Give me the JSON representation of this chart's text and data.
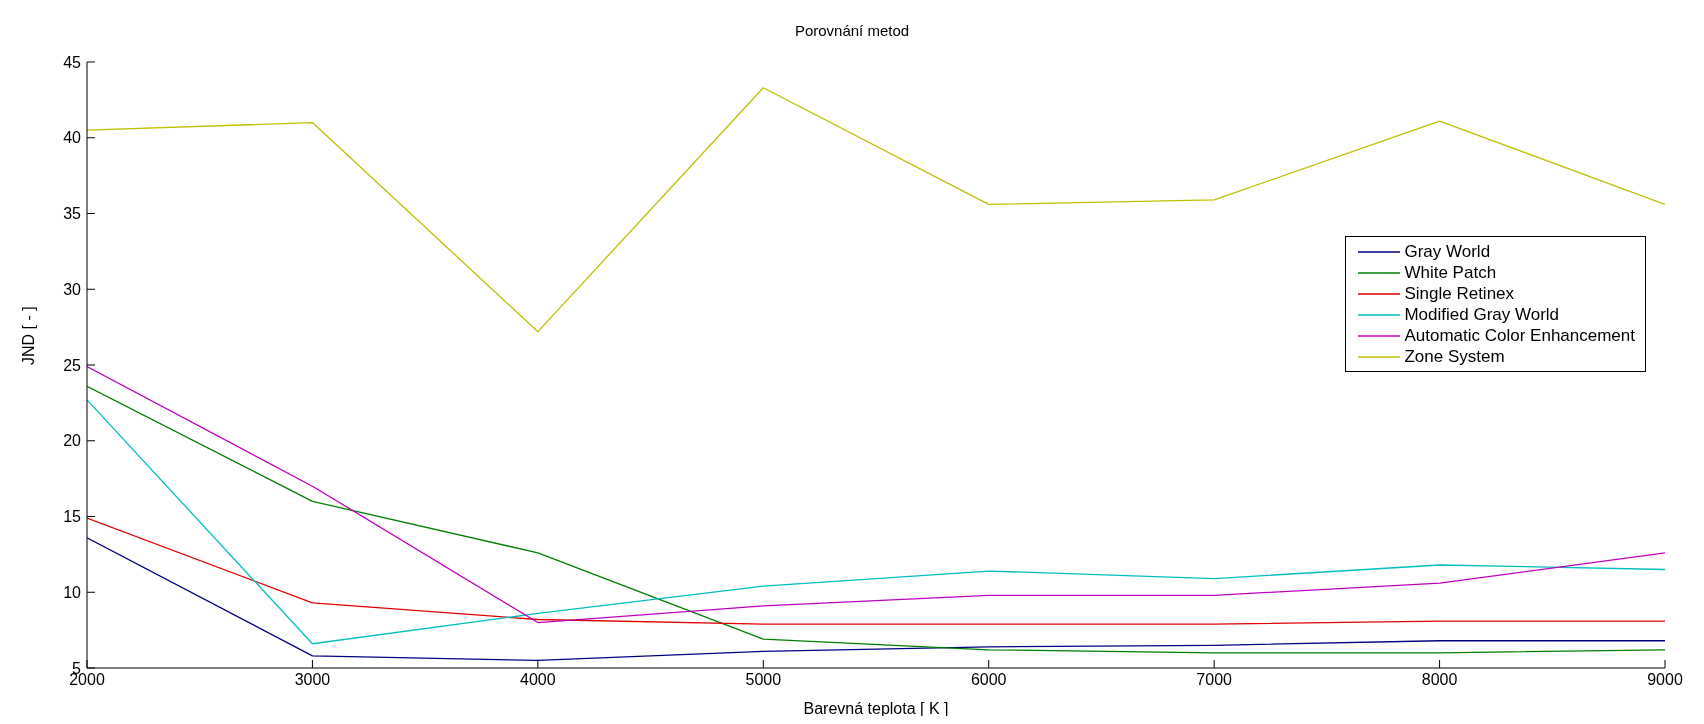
{
  "chart_data": {
    "type": "line",
    "title": "Porovnání metod",
    "xlabel": "Barevná teplota [ K ]",
    "ylabel": "JND [ - ]",
    "x": [
      2000,
      3000,
      4000,
      5000,
      6000,
      7000,
      8000,
      9000
    ],
    "xlim": [
      2000,
      9000
    ],
    "xticks": [
      2000,
      3000,
      4000,
      5000,
      6000,
      7000,
      8000,
      9000
    ],
    "ylim": [
      5,
      45
    ],
    "yticks": [
      5,
      10,
      15,
      20,
      25,
      30,
      35,
      40,
      45
    ],
    "grid": false,
    "legend": "right",
    "marker": "none",
    "line_style": "solid",
    "series": [
      {
        "name": "Gray World",
        "color": "#00007f",
        "values": [
          13.6,
          5.8,
          5.5,
          6.1,
          6.4,
          6.5,
          6.8,
          6.8
        ]
      },
      {
        "name": "White Patch",
        "color": "#007f00",
        "values": [
          23.6,
          16.0,
          12.6,
          6.9,
          6.2,
          6.0,
          6.0,
          6.2
        ]
      },
      {
        "name": "Single Retinex",
        "color": "#e00000",
        "values": [
          14.9,
          9.3,
          8.2,
          7.9,
          7.9,
          7.9,
          8.1,
          8.1
        ]
      },
      {
        "name": "Modified Gray World",
        "color": "#00bfbf",
        "values": [
          22.7,
          6.6,
          8.6,
          10.4,
          11.4,
          10.9,
          11.8,
          11.5
        ]
      },
      {
        "name": "Automatic Color Enhancement",
        "color": "#bf00bf",
        "values": [
          24.9,
          17.0,
          8.0,
          9.1,
          9.8,
          9.8,
          10.6,
          12.6
        ]
      },
      {
        "name": "Zone System",
        "color": "#bfbf00",
        "values": [
          40.5,
          41.0,
          27.2,
          43.3,
          35.6,
          35.9,
          41.1,
          35.6
        ]
      }
    ]
  }
}
